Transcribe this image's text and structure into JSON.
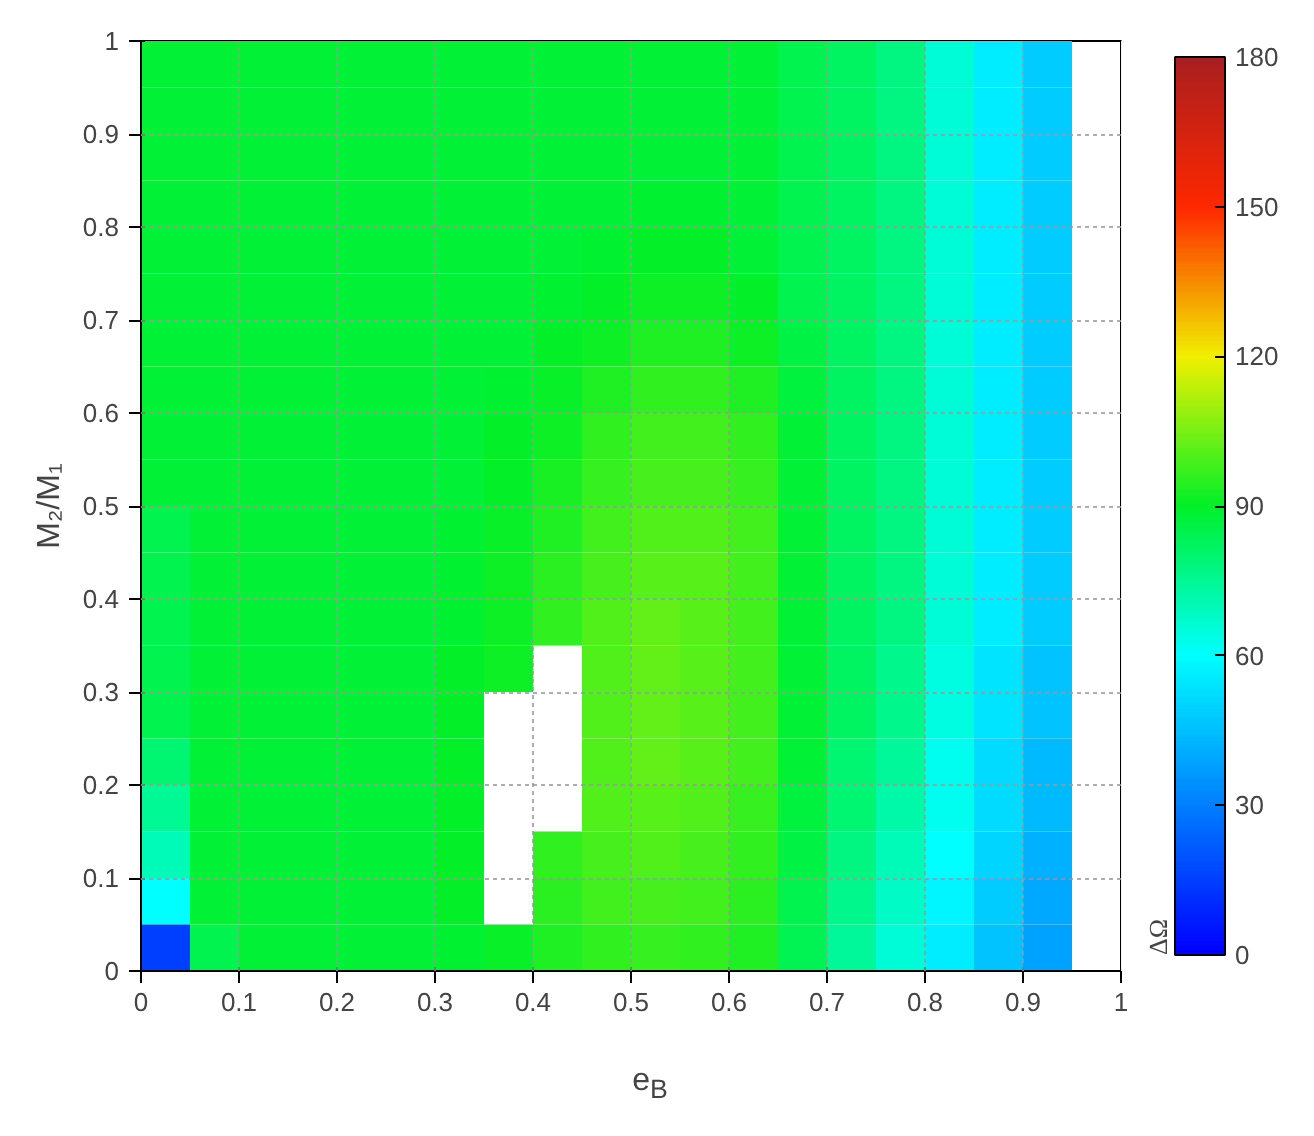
{
  "chart_data": {
    "type": "heatmap",
    "xlabel": "e$_{B}$",
    "ylabel": "M₂/M₁",
    "clabel": "ΔΩ",
    "x": [
      0.025,
      0.075,
      0.125,
      0.175,
      0.225,
      0.275,
      0.325,
      0.375,
      0.425,
      0.475,
      0.525,
      0.575,
      0.625,
      0.675,
      0.725,
      0.775,
      0.825,
      0.875,
      0.925
    ],
    "cells": [
      [
        88,
        88,
        88,
        88,
        88,
        88,
        88,
        88,
        88,
        88,
        88,
        88,
        88,
        85,
        82,
        78,
        66,
        56,
        48
      ],
      [
        88,
        88,
        88,
        88,
        88,
        88,
        88,
        88,
        88,
        88,
        88,
        88,
        88,
        85,
        82,
        78,
        66,
        56,
        48
      ],
      [
        88,
        88,
        88,
        88,
        88,
        88,
        88,
        88,
        88,
        88,
        88,
        88,
        88,
        85,
        82,
        78,
        66,
        56,
        48
      ],
      [
        88,
        88,
        88,
        88,
        88,
        88,
        88,
        88,
        88,
        88,
        89,
        89,
        88,
        85,
        82,
        78,
        66,
        56,
        48
      ],
      [
        88,
        88,
        88,
        88,
        88,
        88,
        88,
        88,
        88,
        89,
        90,
        90,
        88,
        85,
        82,
        78,
        66,
        56,
        48
      ],
      [
        88,
        88,
        88,
        88,
        88,
        88,
        88,
        88,
        89,
        90,
        92,
        92,
        90,
        85,
        82,
        78,
        66,
        56,
        48
      ],
      [
        88,
        88,
        88,
        88,
        88,
        88,
        88,
        88,
        90,
        92,
        94,
        94,
        92,
        86,
        82,
        78,
        66,
        56,
        48
      ],
      [
        88,
        88,
        88,
        88,
        88,
        88,
        88,
        89,
        91,
        94,
        96,
        96,
        94,
        87,
        82,
        78,
        66,
        56,
        48
      ],
      [
        88,
        88,
        88,
        88,
        88,
        88,
        88,
        90,
        92,
        96,
        98,
        98,
        96,
        88,
        82,
        78,
        66,
        56,
        48
      ],
      [
        88,
        88,
        88,
        88,
        88,
        88,
        88,
        90,
        93,
        97,
        99,
        99,
        97,
        88,
        82,
        78,
        66,
        56,
        48
      ],
      [
        85,
        88,
        88,
        88,
        88,
        88,
        89,
        91,
        94,
        98,
        100,
        100,
        98,
        88,
        82,
        78,
        66,
        56,
        48
      ],
      [
        85,
        88,
        88,
        88,
        88,
        88,
        89,
        92,
        95,
        99,
        101,
        101,
        98,
        88,
        82,
        78,
        66,
        56,
        48
      ],
      [
        85,
        88,
        88,
        88,
        88,
        88,
        89,
        92,
        96,
        100,
        102,
        101,
        98,
        88,
        82,
        78,
        66,
        56,
        48
      ],
      [
        85,
        88,
        88,
        88,
        88,
        88,
        90,
        92,
        null,
        100,
        102,
        101,
        98,
        88,
        82,
        76,
        64,
        54,
        46
      ],
      [
        85,
        88,
        88,
        88,
        88,
        88,
        90,
        null,
        null,
        100,
        102,
        101,
        98,
        88,
        82,
        76,
        64,
        54,
        46
      ],
      [
        80,
        88,
        88,
        88,
        88,
        88,
        90,
        null,
        null,
        100,
        102,
        101,
        98,
        88,
        80,
        74,
        62,
        52,
        44
      ],
      [
        75,
        88,
        88,
        88,
        88,
        88,
        90,
        null,
        null,
        100,
        101,
        100,
        97,
        87,
        80,
        72,
        62,
        52,
        44
      ],
      [
        70,
        88,
        88,
        88,
        88,
        88,
        90,
        null,
        96,
        99,
        100,
        99,
        96,
        86,
        78,
        70,
        60,
        50,
        42
      ],
      [
        60,
        88,
        88,
        88,
        88,
        88,
        90,
        null,
        95,
        98,
        99,
        98,
        95,
        85,
        76,
        68,
        58,
        48,
        40
      ],
      [
        15,
        85,
        88,
        88,
        88,
        88,
        89,
        91,
        94,
        96,
        97,
        96,
        94,
        84,
        74,
        66,
        56,
        46,
        38
      ]
    ],
    "xlim": [
      0,
      1
    ],
    "ylim": [
      0,
      1
    ],
    "xticks": [
      0,
      0.1,
      0.2,
      0.3,
      0.4,
      0.5,
      0.6,
      0.7,
      0.8,
      0.9,
      1
    ],
    "yticks": [
      0,
      0.1,
      0.2,
      0.3,
      0.4,
      0.5,
      0.6,
      0.7,
      0.8,
      0.9,
      1
    ],
    "clim": [
      0,
      180
    ],
    "cticks": [
      0,
      30,
      60,
      90,
      120,
      150,
      180
    ],
    "grid": true
  }
}
